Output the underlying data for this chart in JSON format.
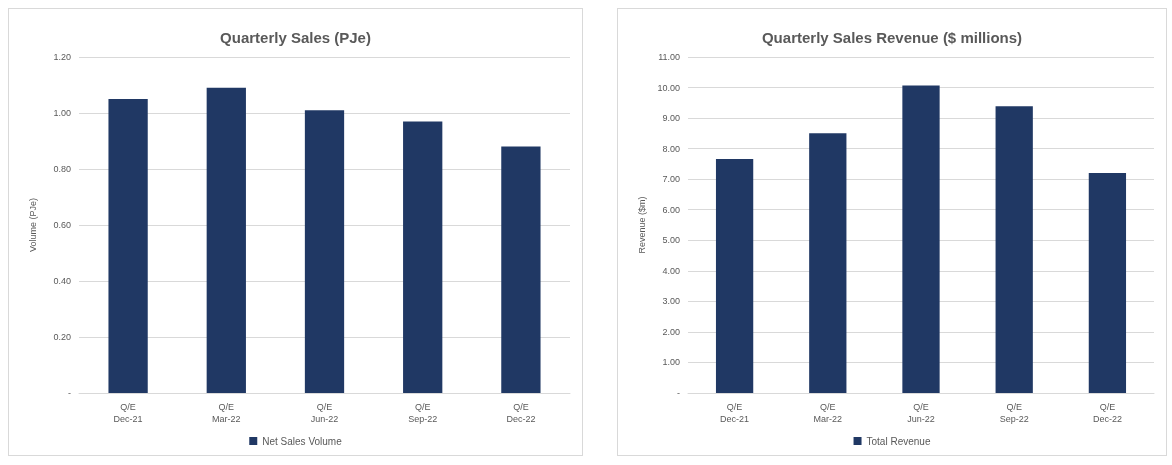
{
  "chart_data": [
    {
      "type": "bar",
      "title": "Quarterly Sales (PJe)",
      "ylabel": "Volume (PJe)",
      "categories": [
        "Q/E\nDec-21",
        "Q/E\nMar-22",
        "Q/E\nJun-22",
        "Q/E\nSep-22",
        "Q/E\nDec-22"
      ],
      "series": [
        {
          "name": "Net Sales Volume",
          "color": "#203864",
          "values": [
            1.05,
            1.09,
            1.01,
            0.97,
            0.88
          ]
        }
      ],
      "ylim": [
        0,
        1.2
      ],
      "yticks": [
        {
          "value": 0,
          "label": "-"
        },
        {
          "value": 0.2,
          "label": "0.20"
        },
        {
          "value": 0.4,
          "label": "0.40"
        },
        {
          "value": 0.6,
          "label": "0.60"
        },
        {
          "value": 0.8,
          "label": "0.80"
        },
        {
          "value": 1,
          "label": "1.00"
        },
        {
          "value": 1.2,
          "label": "1.20"
        }
      ],
      "grid": "y",
      "legend": "bottom"
    },
    {
      "type": "bar",
      "title": "Quarterly Sales Revenue ($ millions)",
      "ylabel": "Revenue ($m)",
      "categories": [
        "Q/E\nDec-21",
        "Q/E\nMar-22",
        "Q/E\nJun-22",
        "Q/E\nSep-22",
        "Q/E\nDec-22"
      ],
      "series": [
        {
          "name": "Total Revenue",
          "color": "#203864",
          "values": [
            7.66,
            8.5,
            10.07,
            9.39,
            7.2
          ]
        }
      ],
      "ylim": [
        0,
        11
      ],
      "yticks": [
        {
          "value": 0,
          "label": "-"
        },
        {
          "value": 1,
          "label": "1.00"
        },
        {
          "value": 2,
          "label": "2.00"
        },
        {
          "value": 3,
          "label": "3.00"
        },
        {
          "value": 4,
          "label": "4.00"
        },
        {
          "value": 5,
          "label": "5.00"
        },
        {
          "value": 6,
          "label": "6.00"
        },
        {
          "value": 7,
          "label": "7.00"
        },
        {
          "value": 8,
          "label": "8.00"
        },
        {
          "value": 9,
          "label": "9.00"
        },
        {
          "value": 10,
          "label": "10.00"
        },
        {
          "value": 11,
          "label": "11.00"
        }
      ],
      "grid": "y",
      "legend": "bottom"
    }
  ]
}
